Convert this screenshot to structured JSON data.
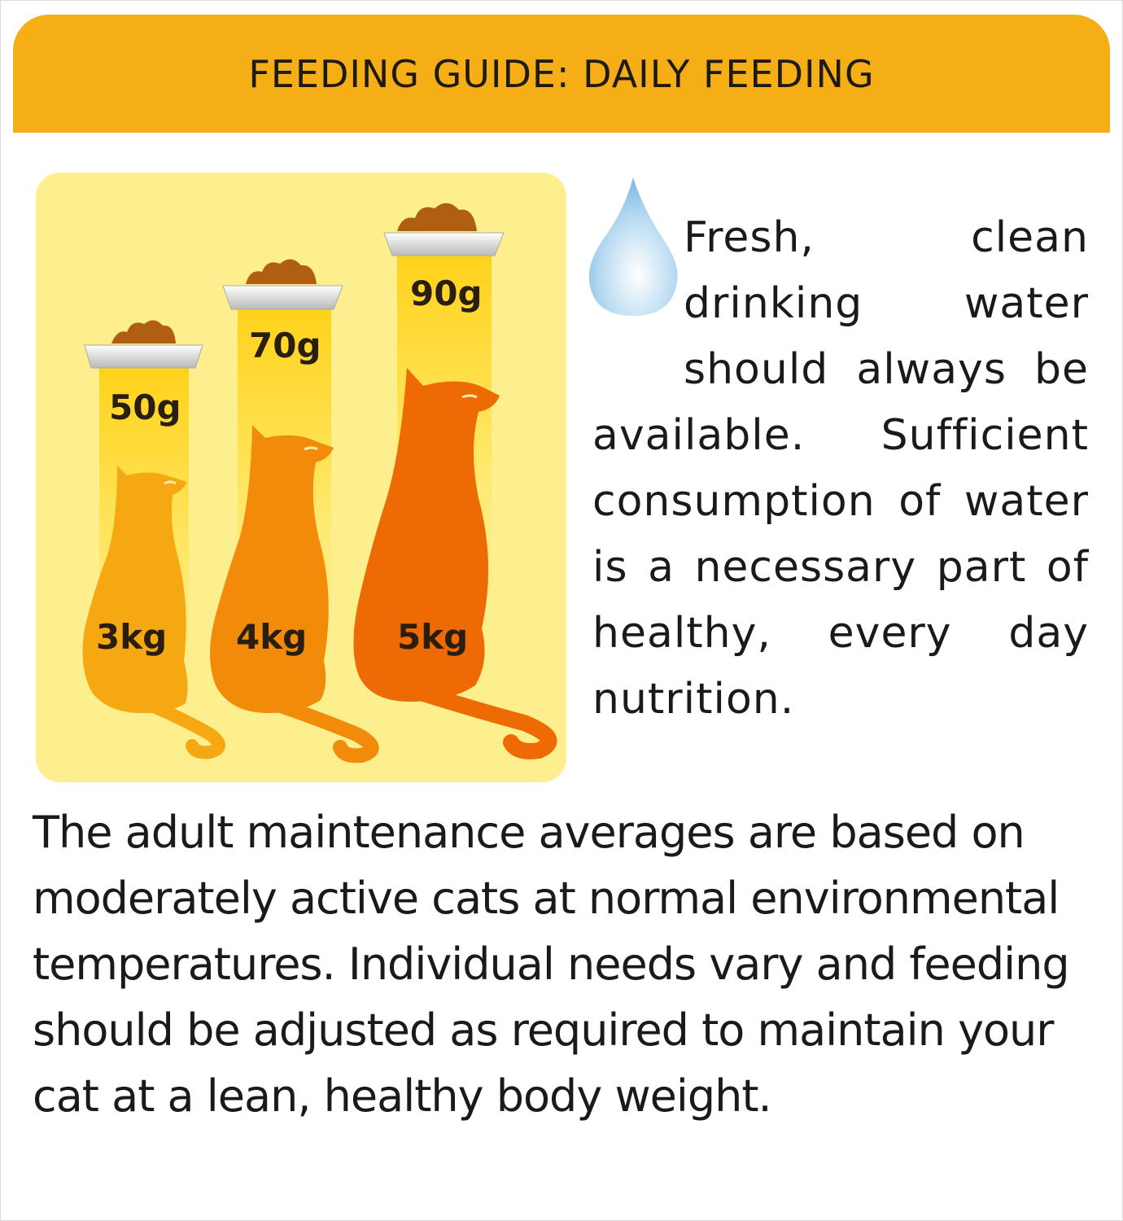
{
  "header": {
    "title": "FEEDING GUIDE: DAILY FEEDING"
  },
  "colors": {
    "header": "#f6ae16",
    "panel": "#fdee8e",
    "cat_small": "#f6a812",
    "cat_medium": "#f38b0a",
    "cat_large": "#ee6a04",
    "kibble": "#b05f12",
    "water_drop": "#9ccbeb"
  },
  "feeding": [
    {
      "portion": "50g",
      "weight": "3kg"
    },
    {
      "portion": "70g",
      "weight": "4kg"
    },
    {
      "portion": "90g",
      "weight": "5kg"
    }
  ],
  "water": {
    "icon": "water-drop-icon",
    "text": "Fresh, clean drinking water should always be available. Sufficient consumption of water is a necessary part of healthy, every day nutrition."
  },
  "note": "The adult maintenance averages are based on moderately active cats at normal environmental temperatures. Individual needs vary and feeding should be adjusted as required to maintain your cat at a lean, healthy body weight."
}
